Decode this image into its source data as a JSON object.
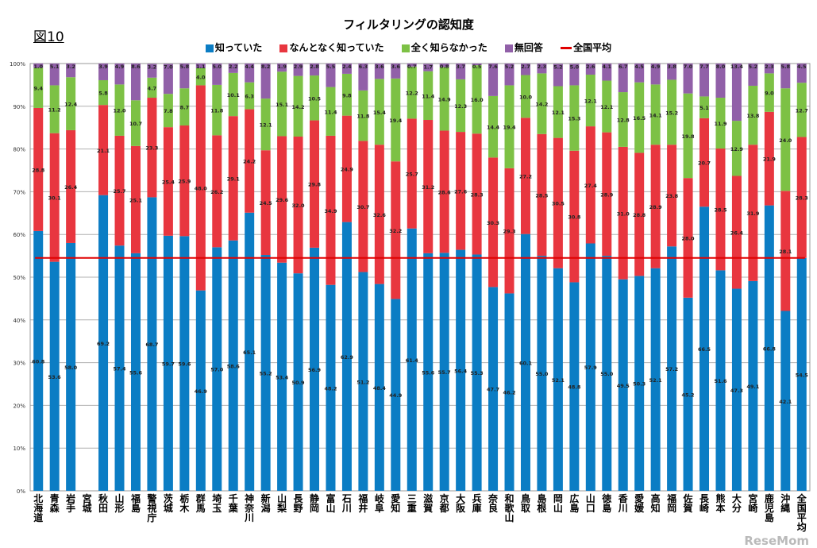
{
  "figure_label": "図10",
  "logo_text": "ReseMom",
  "chart_data": {
    "type": "bar",
    "stacked": true,
    "title": "フィルタリングの認知度",
    "xlabel": "",
    "ylabel": "",
    "ylim": [
      0,
      100
    ],
    "y_ticks": [
      "0%",
      "10%",
      "20%",
      "30%",
      "40%",
      "50%",
      "60%",
      "70%",
      "80%",
      "90%",
      "100%"
    ],
    "grid": true,
    "legend_position": "top",
    "categories": [
      "北海道",
      "青森",
      "岩手",
      "宮城",
      "秋田",
      "山形",
      "福島",
      "警視庁",
      "茨城",
      "栃木",
      "群馬",
      "埼玉",
      "千葉",
      "神奈川",
      "新潟",
      "山梨",
      "長野",
      "静岡",
      "富山",
      "石川",
      "福井",
      "岐阜",
      "愛知",
      "三重",
      "滋賀",
      "京都",
      "大阪",
      "兵庫",
      "奈良",
      "和歌山",
      "鳥取",
      "島根",
      "岡山",
      "広島",
      "山口",
      "徳島",
      "香川",
      "愛媛",
      "高知",
      "福岡",
      "佐賀",
      "長崎",
      "熊本",
      "大分",
      "宮崎",
      "鹿児島",
      "沖縄",
      "全国平均"
    ],
    "series": [
      {
        "name": "知っていた",
        "color": "#0B7DC4",
        "values": [
          60.8,
          53.6,
          58.0,
          null,
          69.2,
          57.4,
          55.6,
          68.7,
          59.7,
          59.6,
          46.9,
          57.0,
          58.6,
          65.1,
          55.2,
          53.4,
          50.9,
          56.9,
          48.2,
          62.9,
          51.2,
          48.4,
          44.9,
          61.4,
          55.6,
          55.7,
          56.4,
          55.3,
          47.7,
          46.2,
          60.1,
          55.0,
          52.1,
          48.8,
          57.9,
          55.0,
          49.5,
          50.3,
          52.1,
          57.2,
          45.2,
          66.5,
          51.6,
          47.3,
          49.1,
          66.8,
          42.1,
          54.5
        ]
      },
      {
        "name": "なんとなく知っていた",
        "color": "#E8363F",
        "values": [
          28.8,
          30.1,
          26.4,
          null,
          21.1,
          25.7,
          25.1,
          23.3,
          25.4,
          25.9,
          48.0,
          26.2,
          29.1,
          24.2,
          24.5,
          29.6,
          32.0,
          29.8,
          34.9,
          24.9,
          30.7,
          32.6,
          32.2,
          25.7,
          31.2,
          28.6,
          27.6,
          28.3,
          30.3,
          29.3,
          27.2,
          28.5,
          30.5,
          30.8,
          27.4,
          28.9,
          31.0,
          28.8,
          28.9,
          23.8,
          28.0,
          20.7,
          28.5,
          26.4,
          31.9,
          21.9,
          28.1,
          28.3
        ]
      },
      {
        "name": "全く知らなかった",
        "color": "#7DC145",
        "values": [
          9.4,
          11.2,
          12.4,
          null,
          5.8,
          12.0,
          10.7,
          4.7,
          7.8,
          8.7,
          4.0,
          11.8,
          10.1,
          6.3,
          12.1,
          15.1,
          14.2,
          10.5,
          11.4,
          9.8,
          11.8,
          15.4,
          19.4,
          12.2,
          11.4,
          14.9,
          12.3,
          16.0,
          14.4,
          19.4,
          10.0,
          14.2,
          12.1,
          15.3,
          12.1,
          12.1,
          12.8,
          16.5,
          14.1,
          15.2,
          19.8,
          5.1,
          11.9,
          12.9,
          13.8,
          9.0,
          24.0,
          12.7
        ]
      },
      {
        "name": "無回答",
        "color": "#9160A8",
        "values": [
          1.0,
          5.1,
          3.2,
          null,
          3.9,
          4.9,
          8.6,
          3.2,
          7.0,
          5.8,
          1.1,
          5.0,
          2.2,
          4.4,
          8.2,
          1.9,
          2.9,
          2.8,
          5.5,
          2.4,
          6.3,
          3.6,
          3.6,
          0.7,
          1.7,
          0.8,
          3.7,
          0.5,
          7.6,
          5.2,
          2.7,
          2.3,
          5.2,
          5.0,
          2.6,
          4.1,
          6.7,
          4.5,
          4.9,
          3.8,
          7.0,
          7.7,
          8.0,
          13.4,
          5.2,
          2.3,
          5.8,
          4.5
        ]
      }
    ],
    "reference_line": {
      "name": "全国平均",
      "value": 54.5,
      "color": "#E00000"
    }
  }
}
